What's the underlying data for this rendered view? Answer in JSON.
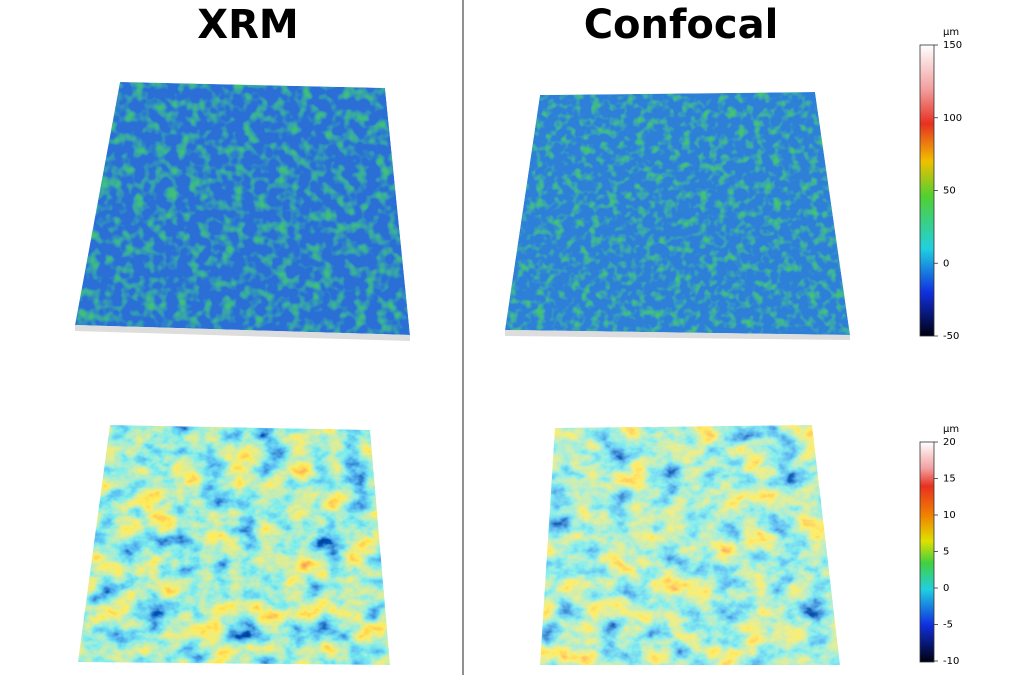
{
  "panels": [
    {
      "title": "XRM"
    },
    {
      "title": "Confocal"
    }
  ],
  "colorbars": [
    {
      "unit": "µm",
      "ticks": [
        150,
        100,
        50,
        0,
        -50
      ]
    },
    {
      "unit": "µm",
      "ticks": [
        20,
        15,
        10,
        5,
        0,
        -5,
        -10
      ]
    }
  ]
}
